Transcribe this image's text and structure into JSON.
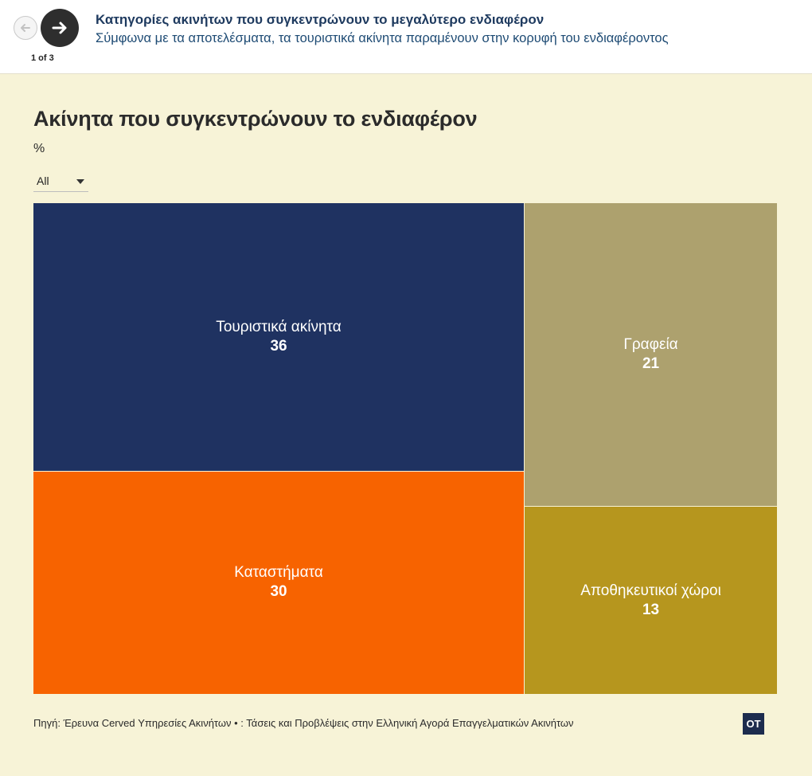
{
  "story": {
    "title": "Κατηγορίες ακινήτων που συγκεντρώνουν το μεγαλύτερο ενδιαφέρον",
    "subtitle": "Σύμφωνα με τα αποτελέσματα, τα τουριστικά ακίνητα παραμένουν στην κορυφή του ενδιαφέροντος",
    "counter": "1 of 3"
  },
  "filter": {
    "selected": "All"
  },
  "chart_data": {
    "type": "treemap",
    "title": "Ακίνητα που συγκεντρώνουν το ενδιαφέρον",
    "unit": "%",
    "categories": [
      "Τουριστικά ακίνητα",
      "Καταστήματα",
      "Γραφεία",
      "Αποθηκευτικοί χώροι"
    ],
    "values": [
      36,
      30,
      21,
      13
    ],
    "colors": [
      "#1f3261",
      "#f76300",
      "#ada16e",
      "#b6961e"
    ]
  },
  "footer": {
    "source": "Πηγή: Έρευνα Cerved Υπηρεσίες Ακινήτων • : Τάσεις και Προβλέψεις στην Ελληνική Αγορά Επαγγελματικών Ακινήτων",
    "logo_text": "ΟΤ"
  }
}
